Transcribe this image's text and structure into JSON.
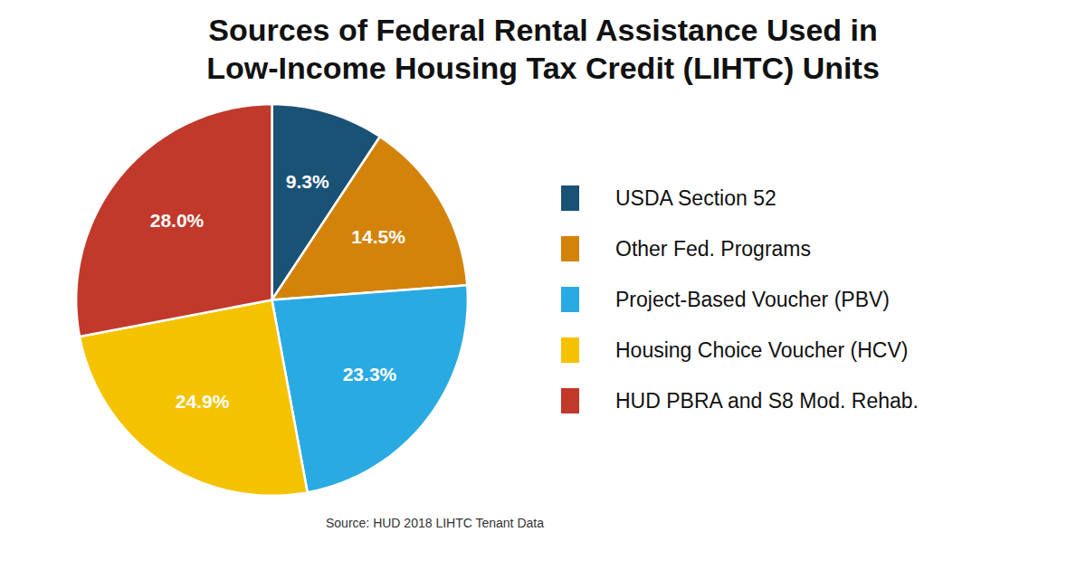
{
  "chart_data": {
    "type": "pie",
    "title": [
      "Sources of Federal Rental Assistance Used in",
      "Low-Income Housing Tax Credit (LIHTC) Units"
    ],
    "categories": [
      "USDA Section 52",
      "Other Fed. Programs",
      "Project-Based Voucher (PBV)",
      "Housing Choice Voucher (HCV)",
      "HUD PBRA and S8 Mod. Rehab."
    ],
    "values": [
      9.3,
      14.5,
      23.3,
      24.9,
      28.0
    ],
    "value_labels": [
      "9.3%",
      "14.5%",
      "23.3%",
      "24.9%",
      "28.0%"
    ],
    "colors": [
      "#1a5276",
      "#d4830a",
      "#29aae2",
      "#f5c200",
      "#c0392b"
    ],
    "data_labels": true,
    "legend": "right",
    "caption": "Source: HUD 2018 LIHTC Tenant Data"
  }
}
